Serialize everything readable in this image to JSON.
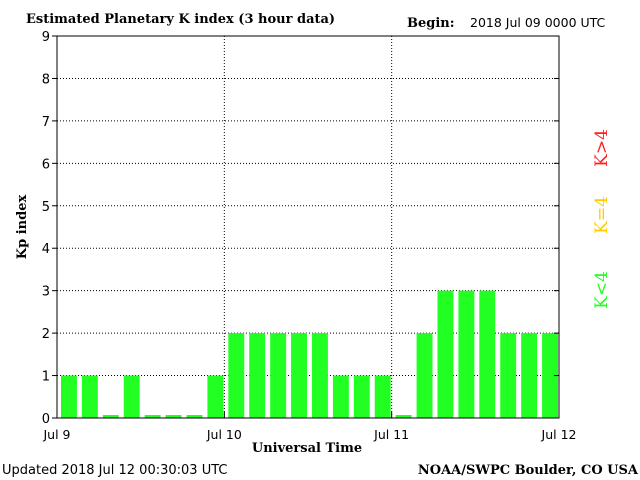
{
  "header": {
    "title": "Estimated Planetary K index (3 hour data)",
    "begin_label": "Begin:",
    "begin_value": "2018 Jul 09 0000 UTC"
  },
  "footer": {
    "updated": "Updated 2018 Jul 12 00:30:03 UTC",
    "source": "NOAA/SWPC Boulder, CO USA"
  },
  "legend": {
    "high": "K>4",
    "mid": "K=4",
    "low": "K<4"
  },
  "colors": {
    "bar_low": "#22ff22",
    "bar_mid": "#ffcc00",
    "bar_high": "#ff2020",
    "text": "#000000"
  },
  "chart_data": {
    "type": "bar",
    "xlabel": "Universal Time",
    "ylabel": "Kp index",
    "ylim": [
      0,
      9
    ],
    "yticks": [
      "0",
      "1",
      "2",
      "3",
      "4",
      "5",
      "6",
      "7",
      "8",
      "9"
    ],
    "xticks": [
      "Jul 9",
      "Jul 10",
      "Jul 11",
      "Jul 12"
    ],
    "grid": "dotted, at day boundaries and each integer Kp level",
    "interval_hours": 3,
    "values": [
      1,
      1,
      0.07,
      1,
      0.07,
      0.07,
      0.07,
      1,
      2,
      2,
      2,
      2,
      2,
      1,
      1,
      1,
      0.07,
      2,
      3,
      3,
      3,
      2,
      2,
      2
    ]
  }
}
